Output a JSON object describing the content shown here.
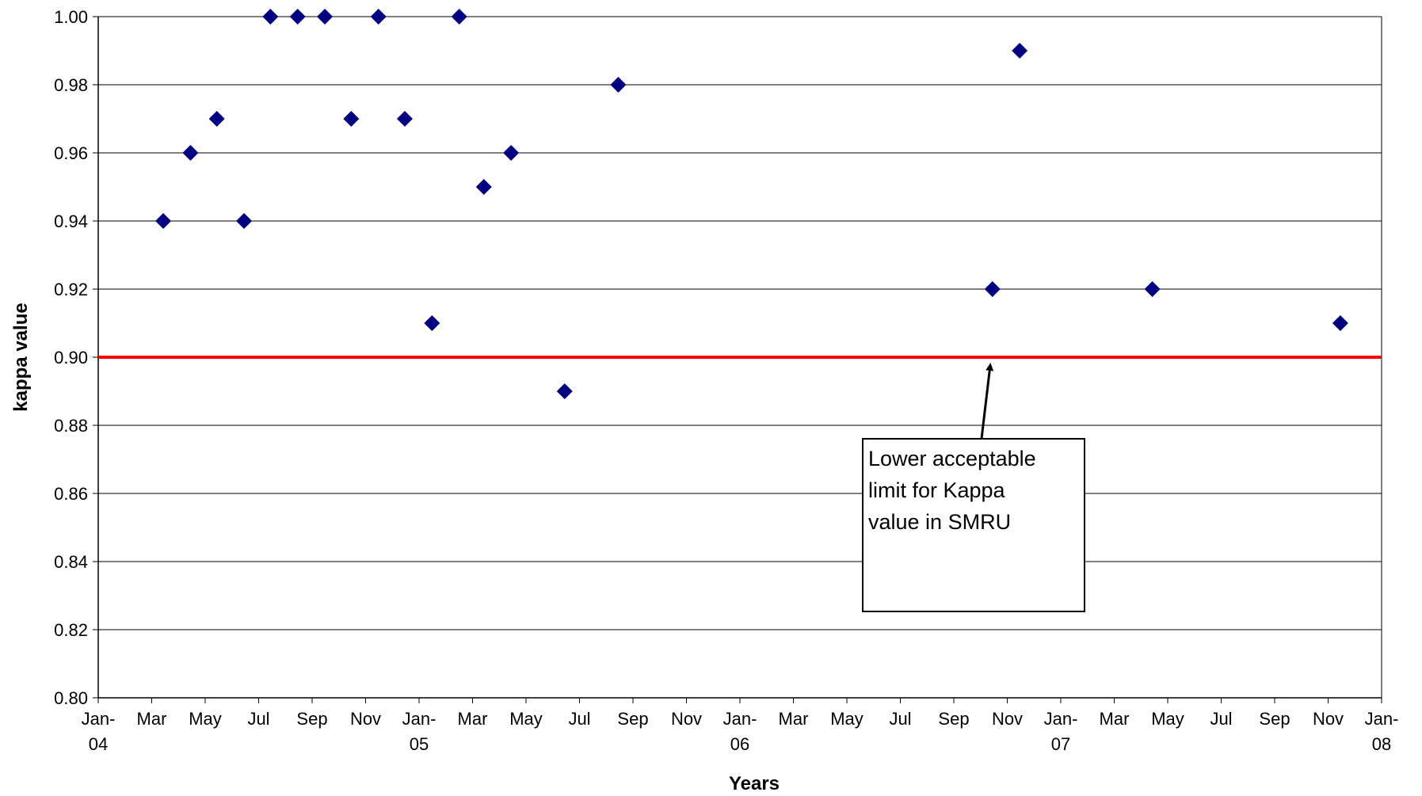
{
  "chart_data": {
    "type": "scatter",
    "title": "",
    "xlabel": "Years",
    "ylabel": "kappa value",
    "ylim": [
      0.8,
      1.0
    ],
    "y_ticks": [
      "0.80",
      "0.82",
      "0.84",
      "0.86",
      "0.88",
      "0.90",
      "0.92",
      "0.94",
      "0.96",
      "0.98",
      "1.00"
    ],
    "x_range": [
      "2004-01",
      "2008-01"
    ],
    "x_ticks": [
      {
        "line1": "Jan-",
        "line2": "04"
      },
      {
        "line1": "Mar",
        "line2": ""
      },
      {
        "line1": "May",
        "line2": ""
      },
      {
        "line1": "Jul",
        "line2": ""
      },
      {
        "line1": "Sep",
        "line2": ""
      },
      {
        "line1": "Nov",
        "line2": ""
      },
      {
        "line1": "Jan-",
        "line2": "05"
      },
      {
        "line1": "Mar",
        "line2": ""
      },
      {
        "line1": "May",
        "line2": ""
      },
      {
        "line1": "Jul",
        "line2": ""
      },
      {
        "line1": "Sep",
        "line2": ""
      },
      {
        "line1": "Nov",
        "line2": ""
      },
      {
        "line1": "Jan-",
        "line2": "06"
      },
      {
        "line1": "Mar",
        "line2": ""
      },
      {
        "line1": "May",
        "line2": ""
      },
      {
        "line1": "Jul",
        "line2": ""
      },
      {
        "line1": "Sep",
        "line2": ""
      },
      {
        "line1": "Nov",
        "line2": ""
      },
      {
        "line1": "Jan-",
        "line2": "07"
      },
      {
        "line1": "Mar",
        "line2": ""
      },
      {
        "line1": "May",
        "line2": ""
      },
      {
        "line1": "Jul",
        "line2": ""
      },
      {
        "line1": "Sep",
        "line2": ""
      },
      {
        "line1": "Nov",
        "line2": ""
      },
      {
        "line1": "Jan-",
        "line2": "08"
      }
    ],
    "series": [
      {
        "marker": "diamond",
        "color": "#000080",
        "points": [
          {
            "x": "2004-03-15",
            "y": 0.94
          },
          {
            "x": "2004-04-15",
            "y": 0.96
          },
          {
            "x": "2004-05-15",
            "y": 0.97
          },
          {
            "x": "2004-06-15",
            "y": 0.94
          },
          {
            "x": "2004-07-15",
            "y": 1.0
          },
          {
            "x": "2004-08-15",
            "y": 1.0
          },
          {
            "x": "2004-09-15",
            "y": 1.0
          },
          {
            "x": "2004-10-15",
            "y": 0.97
          },
          {
            "x": "2004-11-15",
            "y": 1.0
          },
          {
            "x": "2004-12-15",
            "y": 0.97
          },
          {
            "x": "2005-01-15",
            "y": 0.91
          },
          {
            "x": "2005-02-15",
            "y": 1.0
          },
          {
            "x": "2005-03-15",
            "y": 0.95
          },
          {
            "x": "2005-04-15",
            "y": 0.96
          },
          {
            "x": "2005-06-15",
            "y": 0.89
          },
          {
            "x": "2005-08-15",
            "y": 0.98
          },
          {
            "x": "2006-10-15",
            "y": 0.92
          },
          {
            "x": "2006-11-15",
            "y": 0.99
          },
          {
            "x": "2007-04-15",
            "y": 0.92
          },
          {
            "x": "2007-11-15",
            "y": 0.91
          }
        ]
      }
    ],
    "reference_line": {
      "y": 0.9,
      "color": "#ff0000"
    },
    "annotation": {
      "lines": [
        "Lower acceptable",
        "limit for Kappa",
        "value in SMRU"
      ],
      "points_to": {
        "x": "2006-10-15",
        "y": 0.9
      }
    },
    "grid": true,
    "legend": "none"
  }
}
